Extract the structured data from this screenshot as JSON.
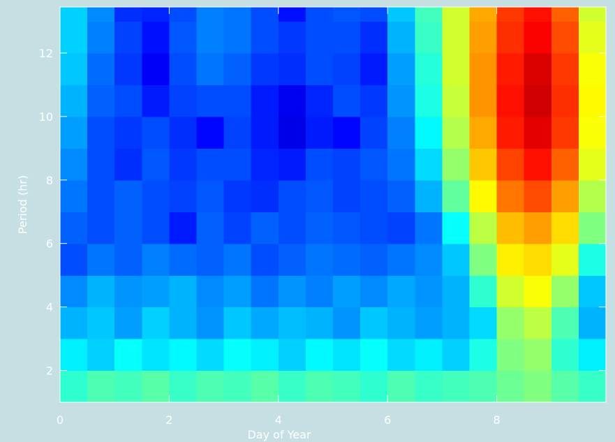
{
  "chart_data": {
    "type": "heatmap",
    "xlabel": "Day of Year",
    "ylabel": "Period (hr)",
    "colormap": "jet",
    "zlim": [
      0,
      1
    ],
    "xlim": [
      0,
      10
    ],
    "ylim": [
      1,
      13.45
    ],
    "xticks": [
      0,
      2,
      4,
      6,
      8
    ],
    "yticks": [
      2,
      4,
      6,
      8,
      10,
      12
    ],
    "x_edges": [
      0,
      0.5,
      1,
      1.5,
      2,
      2.5,
      3,
      3.5,
      4,
      4.5,
      5,
      5.5,
      6,
      6.5,
      7,
      7.5,
      8,
      8.5,
      9,
      9.5,
      10
    ],
    "y_edges": [
      1,
      2,
      3,
      4,
      5,
      6,
      7,
      8,
      9,
      10,
      11,
      12,
      13,
      13.45
    ],
    "z": [
      [
        0.42,
        0.45,
        0.44,
        0.46,
        0.43,
        0.45,
        0.44,
        0.46,
        0.43,
        0.45,
        0.44,
        0.42,
        0.45,
        0.43,
        0.44,
        0.45,
        0.48,
        0.5,
        0.46,
        0.43
      ],
      [
        0.36,
        0.33,
        0.38,
        0.35,
        0.37,
        0.34,
        0.38,
        0.36,
        0.33,
        0.37,
        0.35,
        0.38,
        0.34,
        0.36,
        0.33,
        0.4,
        0.5,
        0.52,
        0.42,
        0.36
      ],
      [
        0.3,
        0.32,
        0.28,
        0.33,
        0.3,
        0.27,
        0.32,
        0.29,
        0.31,
        0.3,
        0.27,
        0.32,
        0.3,
        0.28,
        0.3,
        0.34,
        0.52,
        0.56,
        0.45,
        0.3
      ],
      [
        0.26,
        0.3,
        0.27,
        0.28,
        0.3,
        0.26,
        0.28,
        0.24,
        0.27,
        0.25,
        0.28,
        0.26,
        0.29,
        0.27,
        0.3,
        0.42,
        0.58,
        0.62,
        0.52,
        0.32
      ],
      [
        0.2,
        0.24,
        0.22,
        0.25,
        0.23,
        0.22,
        0.24,
        0.2,
        0.22,
        0.24,
        0.23,
        0.22,
        0.24,
        0.26,
        0.32,
        0.5,
        0.64,
        0.66,
        0.6,
        0.4
      ],
      [
        0.22,
        0.2,
        0.22,
        0.2,
        0.15,
        0.22,
        0.19,
        0.22,
        0.2,
        0.22,
        0.21,
        0.2,
        0.19,
        0.24,
        0.38,
        0.56,
        0.69,
        0.72,
        0.66,
        0.5
      ],
      [
        0.24,
        0.2,
        0.22,
        0.2,
        0.19,
        0.21,
        0.18,
        0.17,
        0.2,
        0.21,
        0.19,
        0.2,
        0.22,
        0.3,
        0.47,
        0.63,
        0.76,
        0.8,
        0.72,
        0.55
      ],
      [
        0.26,
        0.2,
        0.17,
        0.21,
        0.18,
        0.2,
        0.2,
        0.16,
        0.15,
        0.2,
        0.19,
        0.21,
        0.24,
        0.34,
        0.52,
        0.68,
        0.81,
        0.86,
        0.78,
        0.6
      ],
      [
        0.28,
        0.2,
        0.18,
        0.2,
        0.17,
        0.13,
        0.19,
        0.15,
        0.1,
        0.15,
        0.13,
        0.19,
        0.25,
        0.37,
        0.55,
        0.71,
        0.85,
        0.9,
        0.82,
        0.62
      ],
      [
        0.3,
        0.22,
        0.2,
        0.15,
        0.19,
        0.2,
        0.2,
        0.15,
        0.11,
        0.16,
        0.2,
        0.18,
        0.27,
        0.4,
        0.57,
        0.73,
        0.86,
        0.92,
        0.83,
        0.63
      ],
      [
        0.32,
        0.23,
        0.18,
        0.12,
        0.2,
        0.24,
        0.22,
        0.18,
        0.17,
        0.2,
        0.19,
        0.15,
        0.28,
        0.41,
        0.58,
        0.73,
        0.85,
        0.91,
        0.82,
        0.62
      ],
      [
        0.33,
        0.25,
        0.19,
        0.14,
        0.21,
        0.25,
        0.24,
        0.2,
        0.18,
        0.2,
        0.2,
        0.17,
        0.3,
        0.43,
        0.58,
        0.72,
        0.83,
        0.88,
        0.8,
        0.6
      ],
      [
        0.33,
        0.26,
        0.17,
        0.16,
        0.2,
        0.25,
        0.24,
        0.2,
        0.14,
        0.2,
        0.21,
        0.2,
        0.32,
        0.44,
        0.58,
        0.71,
        0.82,
        0.86,
        0.78,
        0.58
      ]
    ]
  }
}
